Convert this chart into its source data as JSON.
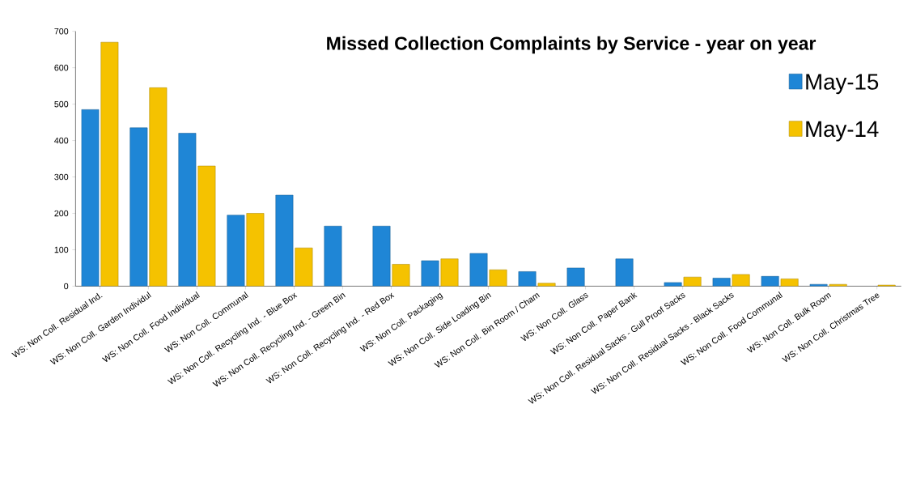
{
  "chart_data": {
    "type": "bar",
    "title": "Missed Collection Complaints by Service  - year on year",
    "categories": [
      "WS: Non Coll. Residual Ind.",
      "WS: Non Coll. Garden Individul",
      "WS: Non Coll. Food Individual",
      "WS: Non Coll. Communal",
      "WS: Non Coll. Recycling Ind. - Blue Box",
      "WS: Non Coll. Recycling Ind. - Green Bin",
      "WS: Non Coll. Recycling Ind. - Red Box",
      "WS: Non Coll. Packaging",
      "WS: Non Coll. Side Loading Bin",
      "WS: Non Coll. Bin Room / Cham",
      "WS: Non Coll. Glass",
      "WS: Non Coll. Paper Bank",
      "WS: Non Coll. Residual Sacks - Gull Proof Sacks",
      "WS: Non Coll. Residual Sacks - Black Sacks",
      "WS: Non Coll. Food Communal",
      "WS: Non Coll. Bulk Room",
      "WS: Non Coll. Christmas Tree"
    ],
    "series": [
      {
        "name": "May-15",
        "color": "#1f86d6",
        "values": [
          485,
          435,
          420,
          195,
          250,
          165,
          165,
          70,
          90,
          40,
          50,
          75,
          10,
          22,
          27,
          5,
          null
        ]
      },
      {
        "name": "May-14",
        "color": "#f5c200",
        "values": [
          670,
          545,
          330,
          200,
          105,
          null,
          60,
          75,
          45,
          8,
          null,
          null,
          25,
          32,
          20,
          5,
          3
        ]
      }
    ],
    "ylim": [
      0,
      700
    ],
    "yticks": [
      0,
      100,
      200,
      300,
      400,
      500,
      600,
      700
    ],
    "grid": false,
    "legend": "top right"
  }
}
